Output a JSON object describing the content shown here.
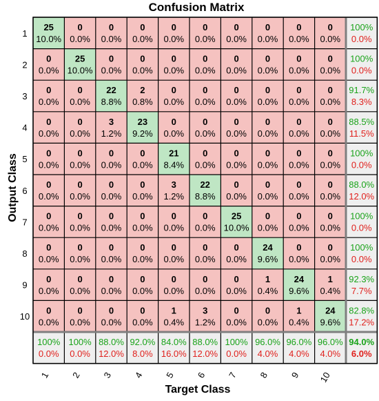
{
  "chart_data": {
    "type": "heatmap",
    "title": "Confusion Matrix",
    "xlabel": "Target Class",
    "ylabel": "Output Class",
    "x_tick_labels": [
      "1",
      "2",
      "3",
      "4",
      "5",
      "6",
      "7",
      "8",
      "9",
      "10"
    ],
    "y_tick_labels": [
      "1",
      "2",
      "3",
      "4",
      "5",
      "6",
      "7",
      "8",
      "9",
      "10"
    ],
    "counts": [
      [
        25,
        0,
        0,
        0,
        0,
        0,
        0,
        0,
        0,
        0
      ],
      [
        0,
        25,
        0,
        0,
        0,
        0,
        0,
        0,
        0,
        0
      ],
      [
        0,
        0,
        22,
        2,
        0,
        0,
        0,
        0,
        0,
        0
      ],
      [
        0,
        0,
        3,
        23,
        0,
        0,
        0,
        0,
        0,
        0
      ],
      [
        0,
        0,
        0,
        0,
        21,
        0,
        0,
        0,
        0,
        0
      ],
      [
        0,
        0,
        0,
        0,
        3,
        22,
        0,
        0,
        0,
        0
      ],
      [
        0,
        0,
        0,
        0,
        0,
        0,
        25,
        0,
        0,
        0
      ],
      [
        0,
        0,
        0,
        0,
        0,
        0,
        0,
        24,
        0,
        0
      ],
      [
        0,
        0,
        0,
        0,
        0,
        0,
        0,
        1,
        24,
        1
      ],
      [
        0,
        0,
        0,
        0,
        1,
        3,
        0,
        0,
        1,
        24
      ]
    ],
    "percents": [
      [
        "10.0%",
        "0.0%",
        "0.0%",
        "0.0%",
        "0.0%",
        "0.0%",
        "0.0%",
        "0.0%",
        "0.0%",
        "0.0%"
      ],
      [
        "0.0%",
        "10.0%",
        "0.0%",
        "0.0%",
        "0.0%",
        "0.0%",
        "0.0%",
        "0.0%",
        "0.0%",
        "0.0%"
      ],
      [
        "0.0%",
        "0.0%",
        "8.8%",
        "0.8%",
        "0.0%",
        "0.0%",
        "0.0%",
        "0.0%",
        "0.0%",
        "0.0%"
      ],
      [
        "0.0%",
        "0.0%",
        "1.2%",
        "9.2%",
        "0.0%",
        "0.0%",
        "0.0%",
        "0.0%",
        "0.0%",
        "0.0%"
      ],
      [
        "0.0%",
        "0.0%",
        "0.0%",
        "0.0%",
        "8.4%",
        "0.0%",
        "0.0%",
        "0.0%",
        "0.0%",
        "0.0%"
      ],
      [
        "0.0%",
        "0.0%",
        "0.0%",
        "0.0%",
        "1.2%",
        "8.8%",
        "0.0%",
        "0.0%",
        "0.0%",
        "0.0%"
      ],
      [
        "0.0%",
        "0.0%",
        "0.0%",
        "0.0%",
        "0.0%",
        "0.0%",
        "10.0%",
        "0.0%",
        "0.0%",
        "0.0%"
      ],
      [
        "0.0%",
        "0.0%",
        "0.0%",
        "0.0%",
        "0.0%",
        "0.0%",
        "0.0%",
        "9.6%",
        "0.0%",
        "0.0%"
      ],
      [
        "0.0%",
        "0.0%",
        "0.0%",
        "0.0%",
        "0.0%",
        "0.0%",
        "0.0%",
        "0.4%",
        "9.6%",
        "0.4%"
      ],
      [
        "0.0%",
        "0.0%",
        "0.0%",
        "0.0%",
        "0.4%",
        "1.2%",
        "0.0%",
        "0.0%",
        "0.4%",
        "9.6%"
      ]
    ],
    "row_summary": [
      [
        "100%",
        "0.0%"
      ],
      [
        "100%",
        "0.0%"
      ],
      [
        "91.7%",
        "8.3%"
      ],
      [
        "88.5%",
        "11.5%"
      ],
      [
        "100%",
        "0.0%"
      ],
      [
        "88.0%",
        "12.0%"
      ],
      [
        "100%",
        "0.0%"
      ],
      [
        "100%",
        "0.0%"
      ],
      [
        "92.3%",
        "7.7%"
      ],
      [
        "82.8%",
        "17.2%"
      ]
    ],
    "col_summary": [
      [
        "100%",
        "0.0%"
      ],
      [
        "100%",
        "0.0%"
      ],
      [
        "88.0%",
        "12.0%"
      ],
      [
        "92.0%",
        "8.0%"
      ],
      [
        "84.0%",
        "16.0%"
      ],
      [
        "88.0%",
        "12.0%"
      ],
      [
        "100%",
        "0.0%"
      ],
      [
        "96.0%",
        "4.0%"
      ],
      [
        "96.0%",
        "4.0%"
      ],
      [
        "96.0%",
        "4.0%"
      ]
    ],
    "overall": [
      "94.0%",
      "6.0%"
    ],
    "colors": {
      "diagonal": "#bfe6c4",
      "off_diagonal": "#f5c2c0",
      "summary": "#efefef",
      "correct_text": "#1aa31a",
      "error_text": "#e0201c",
      "grid": "#000000",
      "summary_border": "#7f7f7f"
    }
  }
}
